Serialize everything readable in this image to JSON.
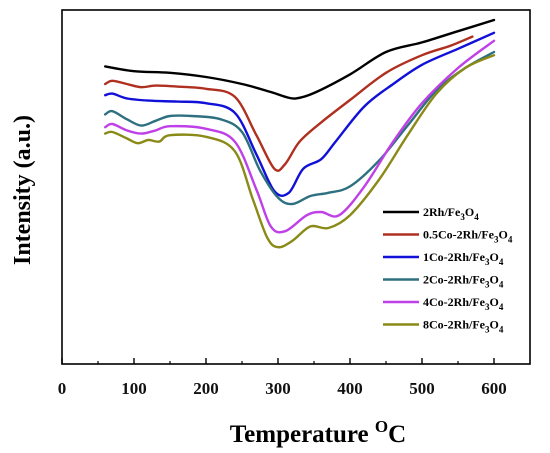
{
  "chart_data": {
    "type": "line",
    "title": "",
    "xlabel": "Temperature",
    "xlabel_sup": "O",
    "xlabel_unit": "C",
    "ylabel": "Intensity (a.u.)",
    "xlim": [
      0,
      650
    ],
    "x_ticks": [
      0,
      100,
      200,
      300,
      400,
      500,
      600
    ],
    "y_ticks_labeled": false,
    "grid": false,
    "legend_position": "bottom-right",
    "series": [
      {
        "name": "2Rh/Fe3O4",
        "label_parts": [
          "2Rh/Fe",
          "3",
          "O",
          "4"
        ],
        "color": "#000000",
        "points": [
          [
            60,
            0.855
          ],
          [
            100,
            0.84
          ],
          [
            150,
            0.835
          ],
          [
            200,
            0.822
          ],
          [
            250,
            0.8
          ],
          [
            290,
            0.775
          ],
          [
            310,
            0.76
          ],
          [
            325,
            0.755
          ],
          [
            350,
            0.772
          ],
          [
            400,
            0.83
          ],
          [
            450,
            0.9
          ],
          [
            500,
            0.93
          ],
          [
            550,
            0.965
          ],
          [
            600,
            1.0
          ]
        ]
      },
      {
        "name": "0.5Co-2Rh/Fe3O4",
        "label_parts": [
          "0.5Co-2Rh/Fe",
          "3",
          "O",
          "4"
        ],
        "color": "#b03020",
        "points": [
          [
            60,
            0.8
          ],
          [
            70,
            0.81
          ],
          [
            90,
            0.8
          ],
          [
            110,
            0.79
          ],
          [
            130,
            0.795
          ],
          [
            160,
            0.792
          ],
          [
            200,
            0.785
          ],
          [
            240,
            0.76
          ],
          [
            270,
            0.64
          ],
          [
            295,
            0.535
          ],
          [
            310,
            0.55
          ],
          [
            330,
            0.62
          ],
          [
            360,
            0.68
          ],
          [
            400,
            0.75
          ],
          [
            450,
            0.835
          ],
          [
            500,
            0.89
          ],
          [
            540,
            0.92
          ],
          [
            570,
            0.948
          ]
        ]
      },
      {
        "name": "1Co-2Rh/Fe3O4",
        "label_parts": [
          "1Co-2Rh/Fe",
          "3",
          "O",
          "4"
        ],
        "color": "#1010d8",
        "points": [
          [
            60,
            0.765
          ],
          [
            70,
            0.77
          ],
          [
            90,
            0.755
          ],
          [
            120,
            0.748
          ],
          [
            160,
            0.745
          ],
          [
            200,
            0.74
          ],
          [
            240,
            0.71
          ],
          [
            270,
            0.58
          ],
          [
            295,
            0.465
          ],
          [
            315,
            0.46
          ],
          [
            335,
            0.535
          ],
          [
            360,
            0.565
          ],
          [
            380,
            0.62
          ],
          [
            420,
            0.73
          ],
          [
            460,
            0.8
          ],
          [
            500,
            0.86
          ],
          [
            550,
            0.91
          ],
          [
            600,
            0.96
          ]
        ]
      },
      {
        "name": "2Co-2Rh/Fe3O4",
        "label_parts": [
          "2Co-2Rh/Fe",
          "3",
          "O",
          "4"
        ],
        "color": "#2e7080",
        "points": [
          [
            60,
            0.705
          ],
          [
            70,
            0.715
          ],
          [
            90,
            0.69
          ],
          [
            110,
            0.67
          ],
          [
            130,
            0.685
          ],
          [
            150,
            0.7
          ],
          [
            180,
            0.7
          ],
          [
            220,
            0.69
          ],
          [
            250,
            0.65
          ],
          [
            275,
            0.53
          ],
          [
            300,
            0.445
          ],
          [
            320,
            0.425
          ],
          [
            345,
            0.45
          ],
          [
            370,
            0.46
          ],
          [
            400,
            0.48
          ],
          [
            440,
            0.56
          ],
          [
            480,
            0.67
          ],
          [
            520,
            0.78
          ],
          [
            560,
            0.85
          ],
          [
            600,
            0.9
          ]
        ]
      },
      {
        "name": "4Co-2Rh/Fe3O4",
        "label_parts": [
          "4Co-2Rh/Fe",
          "3",
          "O",
          "4"
        ],
        "color": "#c040e8",
        "points": [
          [
            60,
            0.665
          ],
          [
            70,
            0.675
          ],
          [
            90,
            0.655
          ],
          [
            110,
            0.645
          ],
          [
            130,
            0.655
          ],
          [
            150,
            0.668
          ],
          [
            200,
            0.66
          ],
          [
            240,
            0.62
          ],
          [
            270,
            0.47
          ],
          [
            290,
            0.355
          ],
          [
            310,
            0.34
          ],
          [
            340,
            0.39
          ],
          [
            360,
            0.4
          ],
          [
            385,
            0.39
          ],
          [
            420,
            0.48
          ],
          [
            460,
            0.62
          ],
          [
            500,
            0.74
          ],
          [
            550,
            0.85
          ],
          [
            600,
            0.935
          ]
        ]
      },
      {
        "name": "8Co-2Rh/Fe3O4",
        "label_parts": [
          "8Co-2Rh/Fe",
          "3",
          "O",
          "4"
        ],
        "color": "#8a8a18",
        "points": [
          [
            60,
            0.645
          ],
          [
            70,
            0.65
          ],
          [
            90,
            0.63
          ],
          [
            105,
            0.615
          ],
          [
            120,
            0.625
          ],
          [
            135,
            0.62
          ],
          [
            150,
            0.64
          ],
          [
            200,
            0.635
          ],
          [
            240,
            0.59
          ],
          [
            265,
            0.44
          ],
          [
            285,
            0.32
          ],
          [
            300,
            0.29
          ],
          [
            320,
            0.31
          ],
          [
            345,
            0.355
          ],
          [
            370,
            0.35
          ],
          [
            400,
            0.39
          ],
          [
            440,
            0.5
          ],
          [
            480,
            0.64
          ],
          [
            520,
            0.77
          ],
          [
            560,
            0.85
          ],
          [
            600,
            0.89
          ]
        ]
      }
    ]
  }
}
